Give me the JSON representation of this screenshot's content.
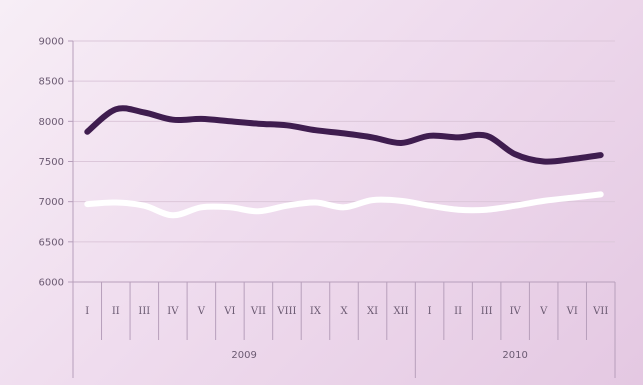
{
  "chart_data": {
    "type": "line",
    "title": "",
    "xlabel": "",
    "ylabel": "",
    "ylim": [
      6000,
      9000
    ],
    "yticks": [
      "9000",
      "8500",
      "8000",
      "7500",
      "7000",
      "6500",
      "6000"
    ],
    "categories": [
      "I",
      "II",
      "III",
      "IV",
      "V",
      "VI",
      "VII",
      "VIII",
      "IX",
      "X",
      "XI",
      "XII",
      "I",
      "II",
      "III",
      "IV",
      "V",
      "VI",
      "VII"
    ],
    "year_groups": [
      {
        "label": "2009",
        "count": 12
      },
      {
        "label": "2010",
        "count": 7
      }
    ],
    "grid": true,
    "series": [
      {
        "color": "#3f1d4f",
        "values": [
          7870,
          8150,
          8110,
          8020,
          8030,
          8000,
          7970,
          7950,
          7890,
          7850,
          7800,
          7730,
          7820,
          7800,
          7820,
          7590,
          7500,
          7530,
          7580
        ]
      },
      {
        "color": "#ffffff",
        "values": [
          6970,
          6990,
          6950,
          6830,
          6930,
          6930,
          6880,
          6950,
          6990,
          6930,
          7020,
          7010,
          6950,
          6900,
          6900,
          6950,
          7010,
          7050,
          7090
        ]
      }
    ]
  }
}
